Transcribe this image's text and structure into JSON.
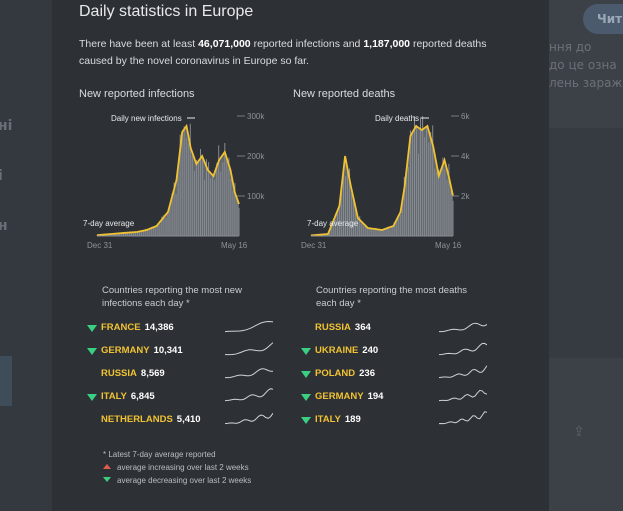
{
  "background": {
    "left_fragments": [
      "ні",
      "і",
      "н"
    ],
    "right_button": "Чит",
    "right_fragments": [
      "ння до",
      "до це озна",
      "лень зараж"
    ]
  },
  "modal": {
    "title": "Daily statistics in Europe",
    "intro": {
      "prefix": "There have been at least ",
      "infections": "46,071,000",
      "middle": " reported infections and ",
      "deaths": "1,187,000",
      "suffix": " reported deaths caused by the novel coronavirus in Europe so far."
    }
  },
  "chart_data": [
    {
      "type": "area",
      "title": "New reported infections",
      "series": [
        {
          "name": "Daily new infections",
          "style": "bars",
          "color": "#6e7379"
        },
        {
          "name": "7-day average",
          "style": "line",
          "color": "#f1c232"
        }
      ],
      "x_ticks": [
        "Dec 31",
        "May 16"
      ],
      "y_ticks": [
        "100k",
        "200k",
        "300k"
      ],
      "ylim": [
        0,
        300000
      ],
      "x": [
        0,
        0.1,
        0.2,
        0.28,
        0.35,
        0.42,
        0.5,
        0.56,
        0.6,
        0.63,
        0.66,
        0.7,
        0.74,
        0.78,
        0.82,
        0.86,
        0.9,
        0.94,
        0.97,
        1.0
      ],
      "values": [
        2000,
        5000,
        8000,
        10000,
        15000,
        25000,
        60000,
        140000,
        260000,
        275000,
        220000,
        180000,
        200000,
        165000,
        150000,
        190000,
        210000,
        165000,
        110000,
        80000
      ]
    },
    {
      "type": "area",
      "title": "New reported deaths",
      "series": [
        {
          "name": "Daily deaths",
          "style": "bars",
          "color": "#6e7379"
        },
        {
          "name": "7-day average",
          "style": "line",
          "color": "#f1c232"
        }
      ],
      "x_ticks": [
        "Dec 31",
        "May 16"
      ],
      "y_ticks": [
        "2k",
        "4k",
        "6k"
      ],
      "ylim": [
        0,
        6000
      ],
      "x": [
        0,
        0.12,
        0.2,
        0.24,
        0.28,
        0.33,
        0.4,
        0.5,
        0.58,
        0.63,
        0.66,
        0.7,
        0.74,
        0.78,
        0.82,
        0.86,
        0.9,
        0.94,
        0.97,
        1.0
      ],
      "values": [
        30,
        100,
        1500,
        4000,
        2500,
        900,
        400,
        300,
        500,
        1200,
        2500,
        5000,
        5500,
        5300,
        5500,
        4500,
        3000,
        3800,
        3000,
        2000
      ]
    }
  ],
  "infections_list": {
    "heading": "Countries reporting the most new infections each day *",
    "rows": [
      {
        "country": "FRANCE",
        "value": "14,386",
        "trend": "down"
      },
      {
        "country": "GERMANY",
        "value": "10,341",
        "trend": "down"
      },
      {
        "country": "RUSSIA",
        "value": "8,569",
        "trend": "none"
      },
      {
        "country": "ITALY",
        "value": "6,845",
        "trend": "down"
      },
      {
        "country": "NETHERLANDS",
        "value": "5,410",
        "trend": "none"
      }
    ]
  },
  "deaths_list": {
    "heading": "Countries reporting the most deaths each day *",
    "rows": [
      {
        "country": "RUSSIA",
        "value": "364",
        "trend": "none"
      },
      {
        "country": "UKRAINE",
        "value": "240",
        "trend": "down"
      },
      {
        "country": "POLAND",
        "value": "236",
        "trend": "down"
      },
      {
        "country": "GERMANY",
        "value": "194",
        "trend": "down"
      },
      {
        "country": "ITALY",
        "value": "189",
        "trend": "down"
      }
    ]
  },
  "notes": {
    "footnote": "* Latest 7-day average reported",
    "up_label": "average increasing over last 2 weeks",
    "down_label": "average decreasing over last 2 weeks"
  },
  "colors": {
    "accent": "#f1c232",
    "decrease": "#3bcf83",
    "increase": "#e05a4e",
    "modal_bg": "#2d3136"
  }
}
